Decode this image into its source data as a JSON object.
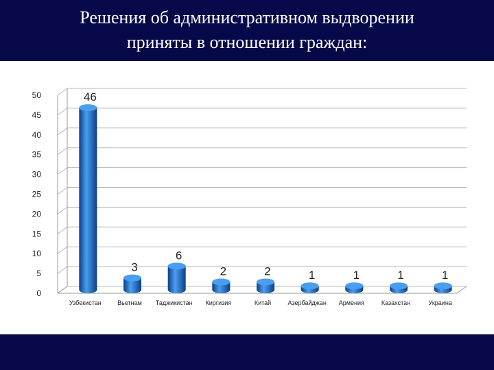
{
  "slide": {
    "title_line1": "Решения об административном выдворении",
    "title_line2": "приняты в отношении граждан:"
  },
  "colors": {
    "band": "#07084a",
    "bar": "#1565c0",
    "bar_light": "#4a9ef0",
    "bar_dark": "#0b3f86",
    "grid": "#b8b8b8"
  },
  "chart_data": {
    "type": "bar",
    "categories": [
      "Узбекистан",
      "Вьетнам",
      "Таджикистан",
      "Киргизия",
      "Китай",
      "Азербайджан",
      "Армения",
      "Казахстан",
      "Украина"
    ],
    "values": [
      46,
      3,
      6,
      2,
      2,
      1,
      1,
      1,
      1
    ],
    "data_labels": [
      "46",
      "3",
      "6",
      "2",
      "2",
      "1",
      "1",
      "1",
      "1"
    ],
    "ylim": [
      0,
      50
    ],
    "yticks": [
      0,
      5,
      10,
      15,
      20,
      25,
      30,
      35,
      40,
      45,
      50
    ],
    "grid": true,
    "legend": "none",
    "title": "",
    "xlabel": "",
    "ylabel": ""
  }
}
